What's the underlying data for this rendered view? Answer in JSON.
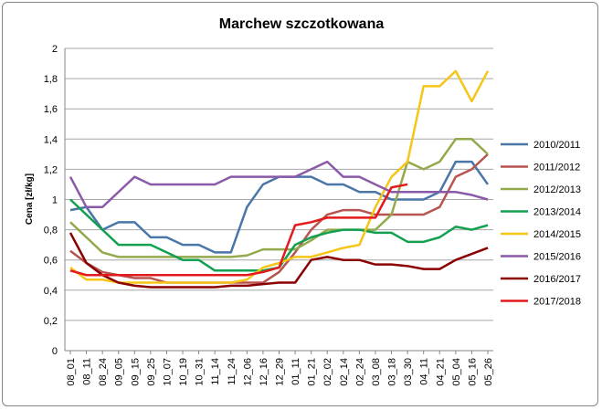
{
  "chart_data": {
    "type": "line",
    "title": "Marchew szczotkowana",
    "xlabel": "",
    "ylabel": "Cena [zł/kg]",
    "ylim": [
      0,
      2
    ],
    "yticks": [
      "0",
      "0,2",
      "0,4",
      "0,6",
      "0,8",
      "1",
      "1,2",
      "1,4",
      "1,6",
      "1,8",
      "2"
    ],
    "grid": "horizontal",
    "legend": "right",
    "categories": [
      "08_01",
      "08_11",
      "08_24",
      "09_05",
      "09_15",
      "09_25",
      "10_07",
      "10_19",
      "10_31",
      "11_14",
      "11_24",
      "12_06",
      "12_16",
      "12_29",
      "01_11",
      "01_21",
      "02_02",
      "02_14",
      "02_24",
      "03_08",
      "03_18",
      "03_30",
      "04_11",
      "04_21",
      "05_04",
      "05_16",
      "05_26"
    ],
    "series": [
      {
        "name": "2010/2011",
        "color": "#4a76a8",
        "values": [
          0.93,
          0.95,
          0.8,
          0.85,
          0.85,
          0.75,
          0.75,
          0.7,
          0.7,
          0.65,
          0.65,
          0.95,
          1.1,
          1.15,
          1.15,
          1.15,
          1.1,
          1.1,
          1.05,
          1.05,
          1.0,
          1.0,
          1.0,
          1.05,
          1.25,
          1.25,
          1.1
        ]
      },
      {
        "name": "2011/2012",
        "color": "#b85450",
        "values": [
          0.66,
          0.58,
          0.52,
          0.5,
          0.48,
          0.48,
          0.45,
          0.45,
          0.45,
          0.45,
          0.45,
          0.45,
          0.45,
          0.52,
          0.65,
          0.8,
          0.9,
          0.93,
          0.93,
          0.9,
          0.9,
          0.9,
          0.9,
          0.95,
          1.15,
          1.2,
          1.3
        ]
      },
      {
        "name": "2012/2013",
        "color": "#92a94c",
        "values": [
          0.85,
          0.75,
          0.65,
          0.62,
          0.62,
          0.62,
          0.62,
          0.62,
          0.62,
          0.62,
          0.62,
          0.63,
          0.67,
          0.67,
          0.67,
          0.73,
          0.8,
          0.8,
          0.8,
          0.8,
          0.9,
          1.25,
          1.2,
          1.25,
          1.4,
          1.4,
          1.3
        ]
      },
      {
        "name": "2013/2014",
        "color": "#13a050",
        "values": [
          1.0,
          0.9,
          0.8,
          0.7,
          0.7,
          0.7,
          0.65,
          0.6,
          0.6,
          0.53,
          0.53,
          0.53,
          0.53,
          0.55,
          0.7,
          0.75,
          0.78,
          0.8,
          0.8,
          0.78,
          0.78,
          0.72,
          0.72,
          0.75,
          0.82,
          0.8,
          0.83
        ]
      },
      {
        "name": "2014/2015",
        "color": "#f5c518",
        "values": [
          0.55,
          0.47,
          0.47,
          0.45,
          0.45,
          0.45,
          0.45,
          0.45,
          0.45,
          0.45,
          0.45,
          0.47,
          0.55,
          0.58,
          0.62,
          0.62,
          0.65,
          0.68,
          0.7,
          0.95,
          1.15,
          1.25,
          1.75,
          1.75,
          1.85,
          1.65,
          1.85
        ]
      },
      {
        "name": "2015/2016",
        "color": "#8a5aa8",
        "values": [
          1.15,
          0.95,
          0.95,
          1.05,
          1.15,
          1.1,
          1.1,
          1.1,
          1.1,
          1.1,
          1.15,
          1.15,
          1.15,
          1.15,
          1.15,
          1.2,
          1.25,
          1.15,
          1.15,
          1.1,
          1.05,
          1.05,
          1.05,
          1.05,
          1.05,
          1.03,
          1.0
        ]
      },
      {
        "name": "2016/2017",
        "color": "#8b0000",
        "values": [
          0.78,
          0.58,
          0.5,
          0.45,
          0.43,
          0.42,
          0.42,
          0.42,
          0.42,
          0.42,
          0.43,
          0.43,
          0.44,
          0.45,
          0.45,
          0.6,
          0.62,
          0.6,
          0.6,
          0.57,
          0.57,
          0.56,
          0.54,
          0.54,
          0.6,
          0.64,
          0.68
        ]
      },
      {
        "name": "2017/2018",
        "color": "#e31a1c",
        "values": [
          0.53,
          0.5,
          0.5,
          0.5,
          0.5,
          0.5,
          0.5,
          0.5,
          0.5,
          0.5,
          0.5,
          0.5,
          0.52,
          0.55,
          0.83,
          0.85,
          0.88,
          0.88,
          0.88,
          0.88,
          1.08,
          1.1,
          null,
          null,
          null,
          null,
          null
        ]
      }
    ]
  }
}
